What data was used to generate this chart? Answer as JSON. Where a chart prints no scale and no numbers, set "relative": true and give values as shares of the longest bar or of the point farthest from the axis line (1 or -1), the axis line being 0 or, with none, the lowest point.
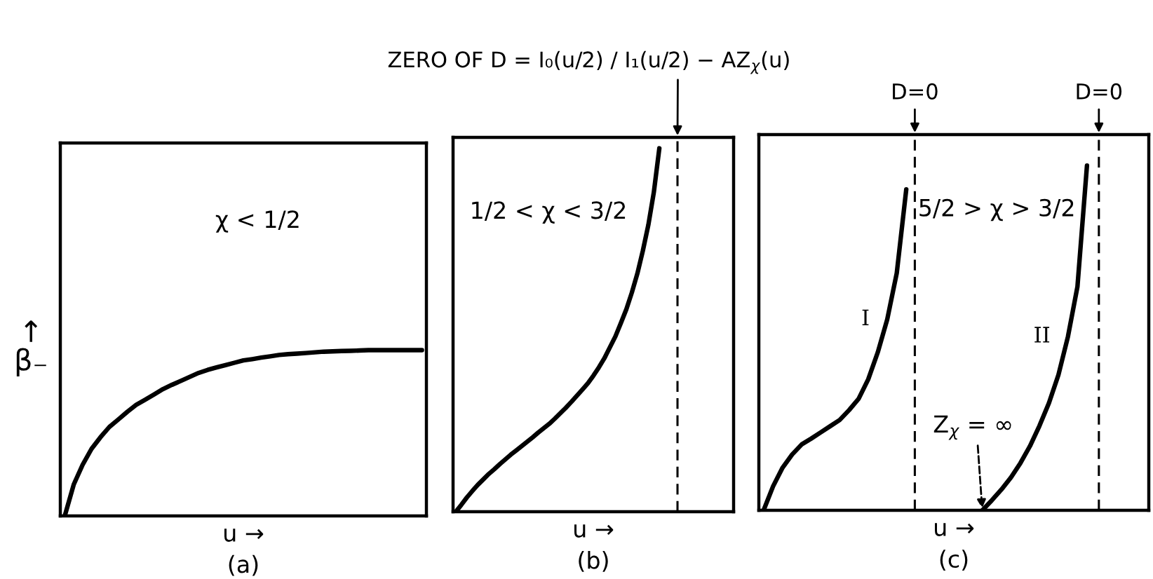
{
  "chart_data": [
    {
      "type": "line",
      "title": "(a)",
      "xlabel": "u →",
      "ylabel": "↑\nβ₋",
      "relative": true,
      "annotations": [
        "χ < 1/2"
      ],
      "categories": [
        null,
        null,
        null,
        null,
        null,
        null,
        null,
        null,
        null,
        null,
        null,
        null,
        null,
        null,
        null,
        null,
        null,
        null,
        null,
        null,
        null,
        null,
        null,
        null,
        null,
        null,
        null,
        null,
        null,
        null,
        null,
        null,
        null,
        null,
        null,
        null,
        null,
        null,
        null,
        null,
        null
      ],
      "series": [
        {
          "color": "#000000",
          "values": [
            0,
            0.189,
            0.309,
            0.405,
            0.475,
            0.537,
            0.582,
            0.628,
            0.67,
            0.701,
            0.733,
            0.765,
            0.791,
            0.815,
            0.839,
            0.863,
            0.881,
            0.896,
            0.91,
            0.924,
            0.938,
            0.946,
            0.955,
            0.963,
            0.971,
            0.976,
            0.979,
            0.983,
            0.987,
            0.991,
            0.993,
            0.995,
            0.996,
            0.998,
            1,
            1,
            1,
            1,
            1,
            1,
            1
          ]
        }
      ]
    },
    {
      "type": "line",
      "title": "(b)",
      "xlabel": "u →",
      "relative": true,
      "annotations": [
        "ZERO OF D = I₀(u/2) / I₁(u/2) − AZ$_{χ}$(u)",
        "1/2 < χ < 3/2"
      ],
      "categories": [
        null,
        null,
        null,
        null,
        null,
        null,
        null,
        null,
        null,
        null,
        null,
        null,
        null,
        null,
        null,
        null,
        null,
        null,
        null,
        null,
        null,
        null,
        null,
        null,
        null,
        null,
        null,
        null,
        null,
        null,
        null,
        null,
        null,
        null,
        null,
        null,
        null,
        null,
        null,
        null,
        null,
        null,
        null,
        null,
        null,
        null,
        null,
        null,
        null,
        null,
        null
      ],
      "series": [
        {
          "color": "#000000",
          "values": [
            0,
            0.019,
            0.039,
            0.057,
            0.074,
            0.089,
            0.104,
            0.117,
            0.131,
            0.144,
            0.157,
            0.169,
            0.181,
            0.193,
            0.205,
            0.218,
            0.23,
            0.242,
            0.256,
            0.271,
            0.286,
            0.302,
            0.319,
            0.336,
            0.353,
            0.374,
            0.397,
            0.422,
            0.452,
            0.482,
            0.519,
            0.557,
            0.603,
            0.655,
            0.718,
            0.789,
            0.879,
            1,
            null,
            null,
            null,
            null,
            null,
            null,
            null,
            null,
            null,
            null,
            null,
            null,
            null
          ]
        }
      ]
    },
    {
      "type": "line",
      "title": "(c)",
      "xlabel": "u →",
      "relative": true,
      "annotations": [
        "D=0",
        "D=0",
        "5/2 > χ > 3/2",
        "Z$_{χ}$ = ∞"
      ],
      "categories": [
        null,
        null,
        null,
        null,
        null,
        null,
        null,
        null,
        null,
        null,
        null,
        null,
        null,
        null,
        null,
        null,
        null,
        null,
        null,
        null,
        null,
        null,
        null,
        null,
        null,
        null,
        null,
        null,
        null,
        null,
        null,
        null,
        null,
        null,
        null,
        null,
        null,
        null,
        null,
        null,
        null
      ],
      "series": [
        {
          "name": "I",
          "color": "#000000",
          "values": [
            0,
            0.07,
            0.124,
            0.162,
            0.191,
            0.208,
            0.226,
            0.244,
            0.262,
            0.291,
            0.324,
            0.38,
            0.458,
            0.554,
            0.688,
            0.931,
            null,
            null,
            null,
            null,
            null,
            null,
            null,
            null,
            null,
            null,
            null,
            null,
            null,
            null,
            null,
            null,
            null,
            null,
            null,
            null,
            null,
            null,
            null,
            null,
            null
          ]
        },
        {
          "name": "II",
          "color": "#000000",
          "values": [
            null,
            null,
            null,
            null,
            null,
            null,
            null,
            null,
            null,
            null,
            null,
            null,
            null,
            null,
            null,
            null,
            null,
            null,
            null,
            null,
            null,
            null,
            null,
            0,
            0.029,
            0.06,
            0.095,
            0.137,
            0.186,
            0.245,
            0.311,
            0.393,
            0.504,
            0.649,
            1,
            null,
            null,
            null,
            null,
            null,
            null
          ]
        }
      ]
    }
  ]
}
